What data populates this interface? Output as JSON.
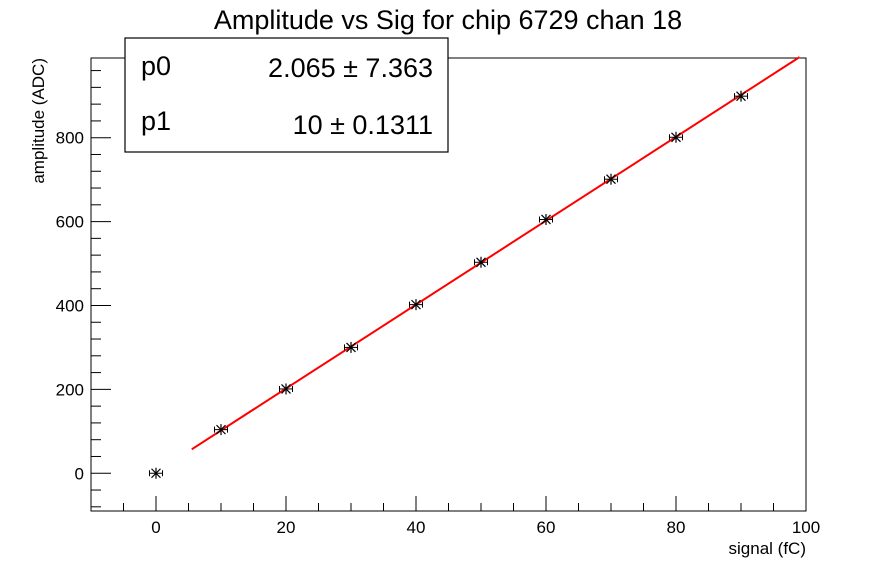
{
  "chart_data": {
    "type": "scatter",
    "title": "Amplitude vs Sig for chip 6729 chan 18",
    "xlabel": "signal (fC)",
    "ylabel": "amplitude (ADC)",
    "xlim": [
      -10,
      100
    ],
    "ylim": [
      -90,
      990
    ],
    "x_ticks": [
      0,
      20,
      40,
      60,
      80,
      100
    ],
    "y_ticks": [
      0,
      200,
      400,
      600,
      800
    ],
    "grid": false,
    "points": [
      {
        "x": 0,
        "y": 0
      },
      {
        "x": 10,
        "y": 104
      },
      {
        "x": 20,
        "y": 201
      },
      {
        "x": 30,
        "y": 300
      },
      {
        "x": 40,
        "y": 402
      },
      {
        "x": 50,
        "y": 503
      },
      {
        "x": 60,
        "y": 605
      },
      {
        "x": 70,
        "y": 701
      },
      {
        "x": 80,
        "y": 801
      },
      {
        "x": 90,
        "y": 899
      }
    ],
    "x_error": 1,
    "fit": {
      "type": "linear",
      "color": "#ff0000",
      "x_range": [
        5.5,
        99
      ],
      "params": [
        {
          "name": "p0",
          "value": 2.065,
          "error": 7.363,
          "display": "2.065 ± 7.363"
        },
        {
          "name": "p1",
          "value": 10,
          "error": 0.1311,
          "display": "10 ± 0.1311"
        }
      ]
    },
    "stats_box_position": "top-left"
  }
}
